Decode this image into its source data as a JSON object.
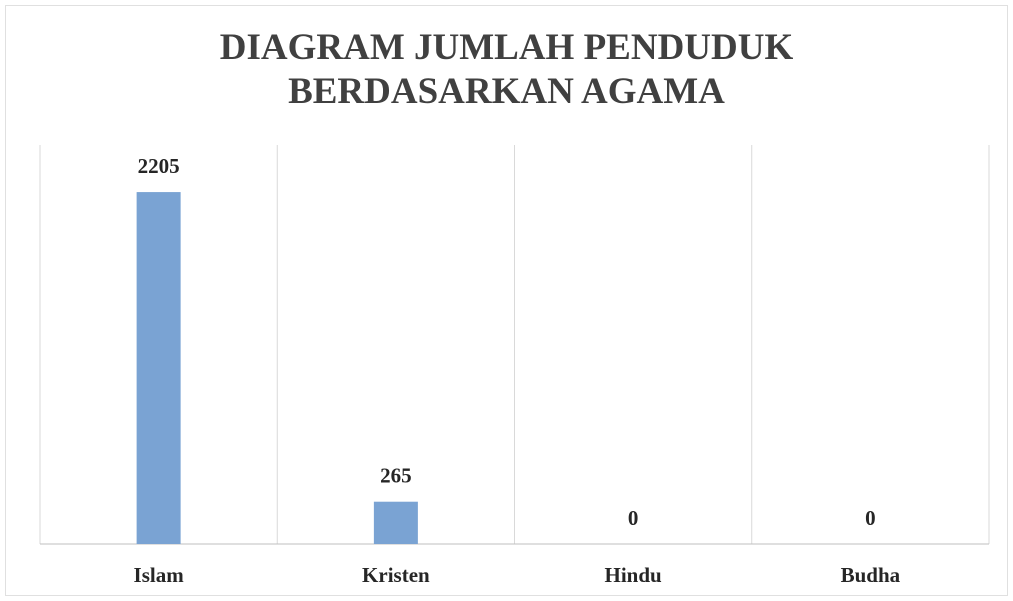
{
  "chart_data": {
    "type": "bar",
    "title": "DIAGRAM JUMLAH PENDUDUK BERDASARKAN AGAMA",
    "categories": [
      "Islam",
      "Kristen",
      "Hindu",
      "Budha"
    ],
    "values": [
      2205,
      265,
      0,
      0
    ],
    "color": "#7aa3d3",
    "ylim": [
      0,
      2500
    ],
    "grid": true
  }
}
